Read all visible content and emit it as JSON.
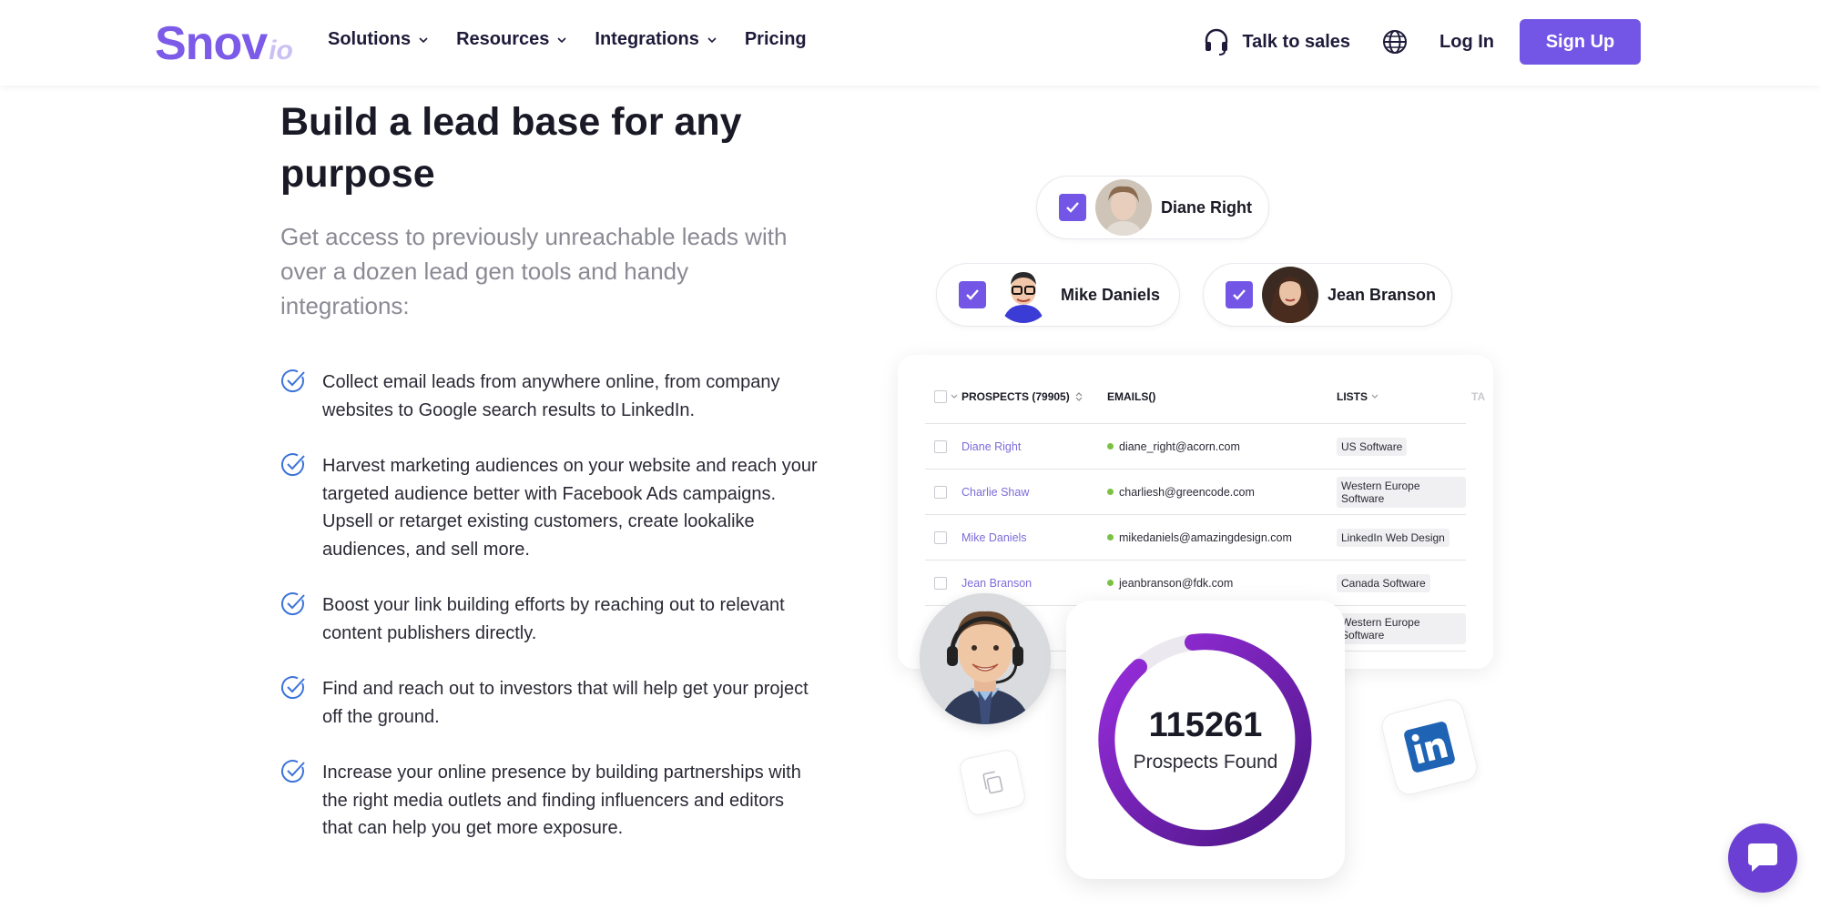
{
  "header": {
    "logo_main": "Snov",
    "logo_suffix": "io",
    "nav": [
      "Solutions",
      "Resources",
      "Integrations",
      "Pricing"
    ],
    "talk_to_sales": "Talk to sales",
    "login": "Log In",
    "signup": "Sign Up"
  },
  "hero": {
    "title": "Build a lead base for any purpose",
    "subtitle": "Get access to previously unreachable leads with over a dozen lead gen tools and handy integrations:",
    "features": [
      "Collect email leads from anywhere online, from company websites to Google search results to LinkedIn.",
      "Harvest marketing audiences on your website and reach your targeted audience better with Facebook Ads campaigns. Upsell or retarget existing customers, create lookalike audiences, and sell more.",
      "Boost your link building efforts by reaching out to relevant content publishers directly.",
      "Find and reach out to investors that will help get your project off the ground.",
      "Increase your online presence by building partnerships with the right media outlets and finding influencers and editors that can help you get more exposure."
    ]
  },
  "selected_prospects": [
    "Diane Right",
    "Mike Daniels",
    "Jean Branson"
  ],
  "table": {
    "headers": {
      "prospects": "PROSPECTS (79905)",
      "emails": "EMAILS()",
      "lists": "LISTS",
      "cut": "TA"
    },
    "rows": [
      {
        "name": "Diane Right",
        "email": "diane_right@acorn.com",
        "list": "US Software"
      },
      {
        "name": "Charlie Shaw",
        "email": "charliesh@greencode.com",
        "list": "Western Europe Software"
      },
      {
        "name": "Mike Daniels",
        "email": "mikedaniels@amazingdesign.com",
        "list": "LinkedIn Web Design"
      },
      {
        "name": "Jean Branson",
        "email": "jeanbranson@fdk.com",
        "list": "Canada Software"
      },
      {
        "name": "",
        "email": "",
        "list": "Western Europe Software"
      }
    ]
  },
  "stats": {
    "count": "115261",
    "label": "Prospects Found"
  },
  "colors": {
    "accent": "#7356e6",
    "ring_start": "#8a2be2",
    "ring_end": "#4b1587"
  }
}
